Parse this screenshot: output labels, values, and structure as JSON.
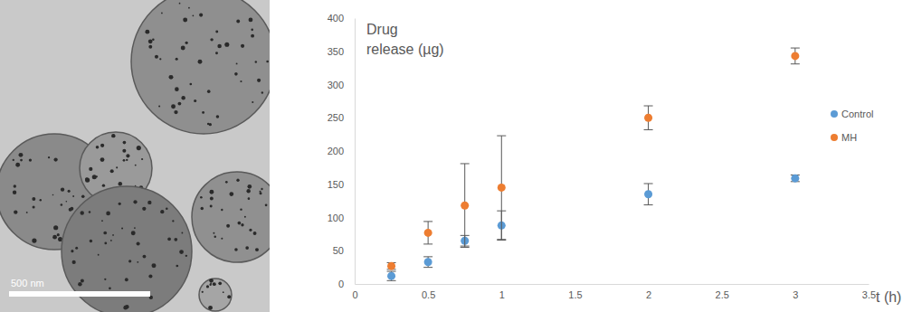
{
  "image": {
    "scale_label": "500 nm"
  },
  "chart_data": {
    "type": "scatter",
    "y_label": "Drug\nrelease (µg)",
    "x_label": "t (h)",
    "x": [
      0.25,
      0.5,
      0.75,
      1,
      2,
      3
    ],
    "series": [
      {
        "name": "Control",
        "color": "#5b9bd5",
        "marker": "circle",
        "values": [
          12,
          33,
          65,
          88,
          135,
          159
        ],
        "errors": [
          7,
          8,
          8,
          22,
          16,
          5
        ]
      },
      {
        "name": "MH",
        "color": "#ed7d31",
        "marker": "circle",
        "values": [
          27,
          77,
          118,
          145,
          250,
          343
        ],
        "errors": [
          5,
          17,
          63,
          78,
          18,
          12
        ]
      }
    ],
    "xlim": [
      0,
      3.5
    ],
    "xticks": [
      0,
      0.5,
      1,
      1.5,
      2,
      2.5,
      3,
      3.5
    ],
    "ylim": [
      0,
      400
    ],
    "yticks": [
      0,
      50,
      100,
      150,
      200,
      250,
      300,
      350,
      400
    ],
    "grid": false,
    "legend": "right"
  }
}
